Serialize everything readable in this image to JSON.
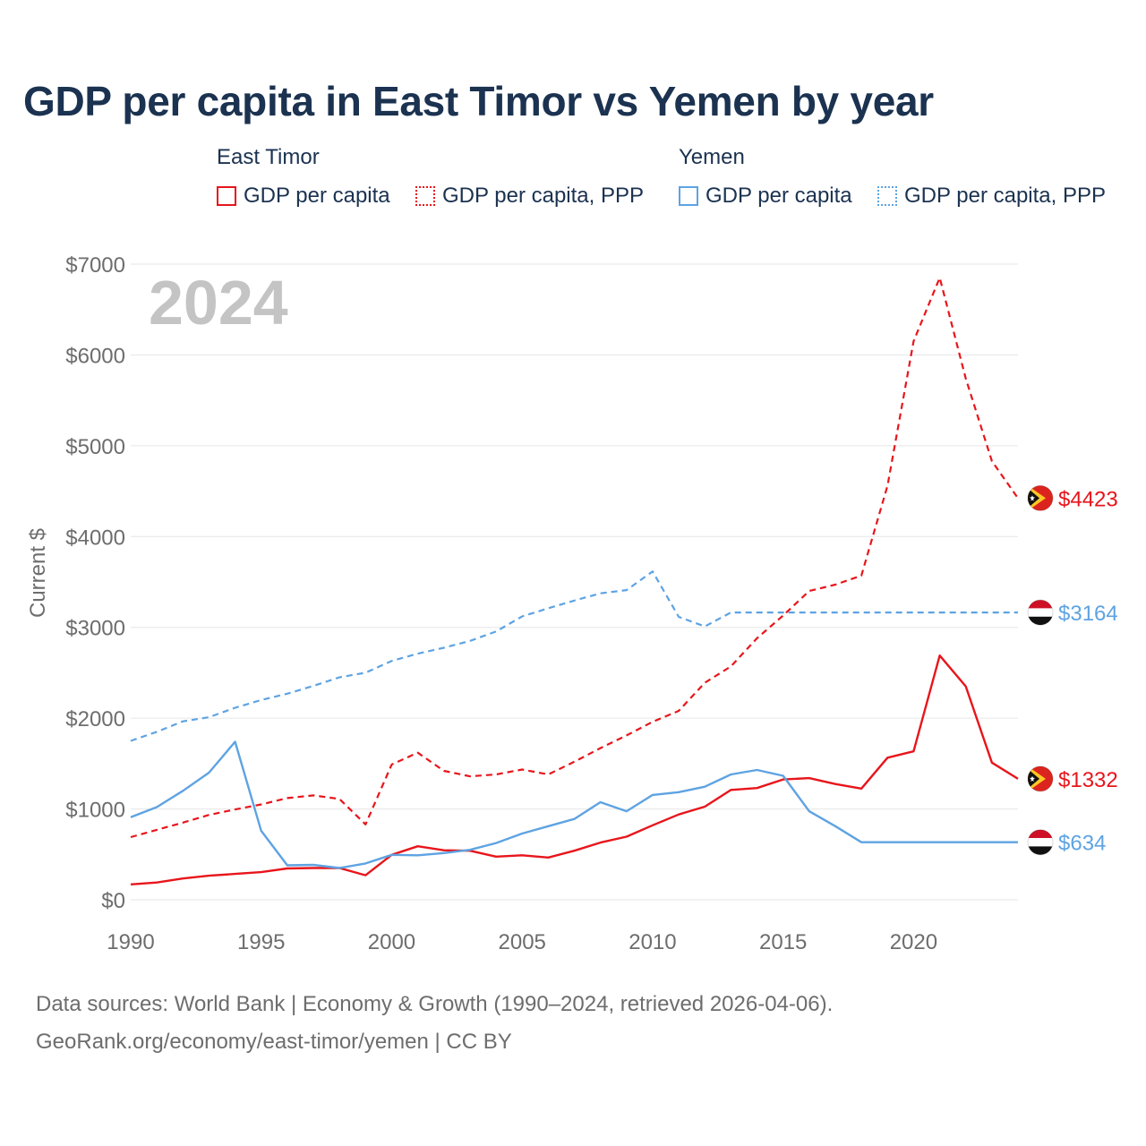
{
  "title": "GDP per capita in East Timor vs Yemen by year",
  "legend": {
    "groups": [
      {
        "name": "East Timor",
        "color": "#e8151b",
        "items": [
          "GDP per capita",
          "GDP per capita, PPP"
        ]
      },
      {
        "name": "Yemen",
        "color": "#5ea3e2",
        "items": [
          "GDP per capita",
          "GDP per capita, PPP"
        ]
      }
    ]
  },
  "chart_data": {
    "type": "line",
    "ylabel": "Current $",
    "ylim": [
      0,
      7000
    ],
    "xlim": [
      1990,
      2024
    ],
    "x_ticks": [
      1990,
      1995,
      2000,
      2005,
      2010,
      2015,
      2020
    ],
    "x_tick_labels": [
      "1990",
      "1995",
      "2000",
      "2005",
      "2010",
      "2015",
      "2020"
    ],
    "y_ticks": [
      0,
      1000,
      2000,
      3000,
      4000,
      5000,
      6000,
      7000
    ],
    "y_tick_labels": [
      "$0",
      "$1000",
      "$2000",
      "$3000",
      "$4000",
      "$5000",
      "$6000",
      "$7000"
    ],
    "grid": true,
    "year_label": "2024",
    "series": [
      {
        "name": "East Timor GDP per capita",
        "country": "East Timor",
        "style": "solid",
        "color": "#e8151b",
        "x": [
          1990,
          1991,
          1992,
          1993,
          1994,
          1995,
          1996,
          1997,
          1998,
          1999,
          2000,
          2001,
          2002,
          2003,
          2004,
          2005,
          2006,
          2007,
          2008,
          2009,
          2010,
          2011,
          2012,
          2013,
          2014,
          2015,
          2016,
          2017,
          2018,
          2019,
          2020,
          2021,
          2022,
          2023,
          2024
        ],
        "values": [
          170,
          190,
          235,
          265,
          285,
          305,
          345,
          350,
          350,
          270,
          495,
          590,
          545,
          540,
          475,
          490,
          465,
          540,
          630,
          695,
          820,
          940,
          1025,
          1210,
          1230,
          1325,
          1340,
          1275,
          1225,
          1565,
          1635,
          2690,
          2350,
          1510,
          1332
        ],
        "end_label": "$1332",
        "end_value": 1332
      },
      {
        "name": "East Timor GDP per capita, PPP",
        "country": "East Timor",
        "style": "dashed",
        "color": "#e8151b",
        "x": [
          1990,
          1991,
          1992,
          1993,
          1994,
          1995,
          1996,
          1997,
          1998,
          1999,
          2000,
          2001,
          2002,
          2003,
          2004,
          2005,
          2006,
          2007,
          2008,
          2009,
          2010,
          2011,
          2012,
          2013,
          2014,
          2015,
          2016,
          2017,
          2018,
          2019,
          2020,
          2021,
          2022,
          2023,
          2024
        ],
        "values": [
          690,
          770,
          850,
          935,
          995,
          1050,
          1120,
          1150,
          1110,
          830,
          1490,
          1620,
          1420,
          1360,
          1380,
          1435,
          1380,
          1520,
          1670,
          1810,
          1960,
          2080,
          2390,
          2570,
          2880,
          3130,
          3400,
          3470,
          3570,
          4560,
          6150,
          6850,
          5740,
          4830,
          4423
        ],
        "end_label": "$4423",
        "end_value": 4423
      },
      {
        "name": "Yemen GDP per capita",
        "country": "Yemen",
        "style": "solid",
        "color": "#5ea3e2",
        "x": [
          1990,
          1991,
          1992,
          1993,
          1994,
          1995,
          1996,
          1997,
          1998,
          1999,
          2000,
          2001,
          2002,
          2003,
          2004,
          2005,
          2006,
          2007,
          2008,
          2009,
          2010,
          2011,
          2012,
          2013,
          2014,
          2015,
          2016,
          2017,
          2018,
          2019,
          2020,
          2021,
          2022,
          2023,
          2024
        ],
        "values": [
          910,
          1020,
          1200,
          1400,
          1740,
          760,
          380,
          385,
          350,
          400,
          495,
          490,
          515,
          550,
          625,
          730,
          810,
          890,
          1075,
          975,
          1155,
          1185,
          1245,
          1380,
          1430,
          1365,
          975,
          810,
          634,
          634,
          634,
          634,
          634,
          634,
          634
        ],
        "end_label": "$634",
        "end_value": 634
      },
      {
        "name": "Yemen GDP per capita, PPP",
        "country": "Yemen",
        "style": "dashed",
        "color": "#5ea3e2",
        "x": [
          1990,
          1991,
          1992,
          1993,
          1994,
          1995,
          1996,
          1997,
          1998,
          1999,
          2000,
          2001,
          2002,
          2003,
          2004,
          2005,
          2006,
          2007,
          2008,
          2009,
          2010,
          2011,
          2012,
          2013,
          2014,
          2015,
          2016,
          2017,
          2018,
          2019,
          2020,
          2021,
          2022,
          2023,
          2024
        ],
        "values": [
          1750,
          1850,
          1965,
          2010,
          2115,
          2200,
          2270,
          2355,
          2450,
          2500,
          2630,
          2710,
          2775,
          2850,
          2955,
          3120,
          3210,
          3295,
          3375,
          3410,
          3615,
          3115,
          3010,
          3164,
          3164,
          3164,
          3164,
          3164,
          3164,
          3164,
          3164,
          3164,
          3164,
          3164,
          3164
        ],
        "end_label": "$3164",
        "end_value": 3164
      }
    ]
  },
  "footer": {
    "line1": "Data sources: World Bank | Economy & Growth (1990–2024, retrieved 2026-04-06).",
    "line2": "GeoRank.org/economy/east-timor/yemen | CC BY"
  }
}
